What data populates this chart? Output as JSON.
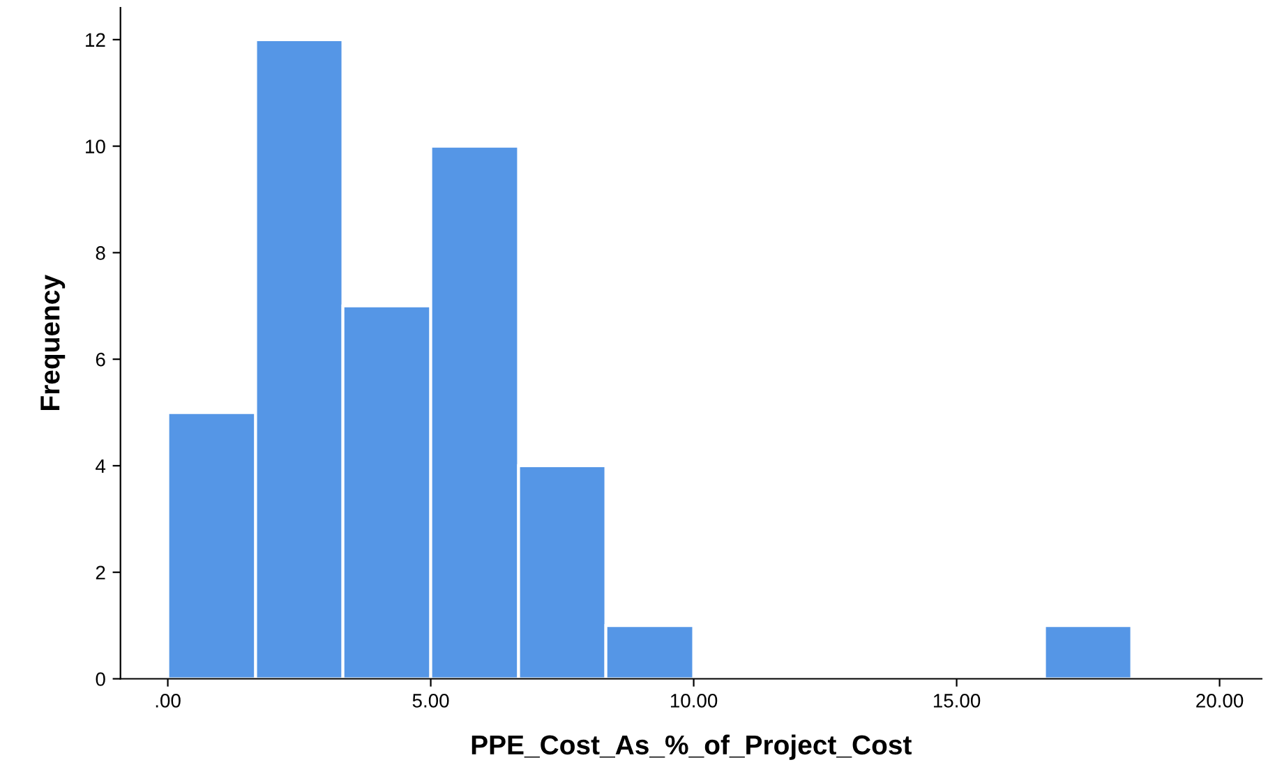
{
  "chart_data": {
    "type": "histogram",
    "xlabel": "PPE_Cost_As_%_of_Project_Cost",
    "ylabel": "Frequency",
    "bins": [
      0,
      1.67,
      3.33,
      5,
      6.67,
      8.33,
      10,
      16.67,
      18.33
    ],
    "values": [
      5,
      12,
      7,
      10,
      4,
      1,
      0,
      1
    ],
    "color": "#5596e6",
    "xlim": [
      -0.9,
      20.8
    ],
    "ylim": [
      0,
      12.6
    ],
    "xticks": [
      {
        "value": 0,
        "label": ".00"
      },
      {
        "value": 5,
        "label": "5.00"
      },
      {
        "value": 10,
        "label": "10.00"
      },
      {
        "value": 15,
        "label": "15.00"
      },
      {
        "value": 20,
        "label": "20.00"
      }
    ],
    "yticks": [
      0,
      2,
      4,
      6,
      8,
      10,
      12
    ],
    "grid": false,
    "legend": false
  }
}
